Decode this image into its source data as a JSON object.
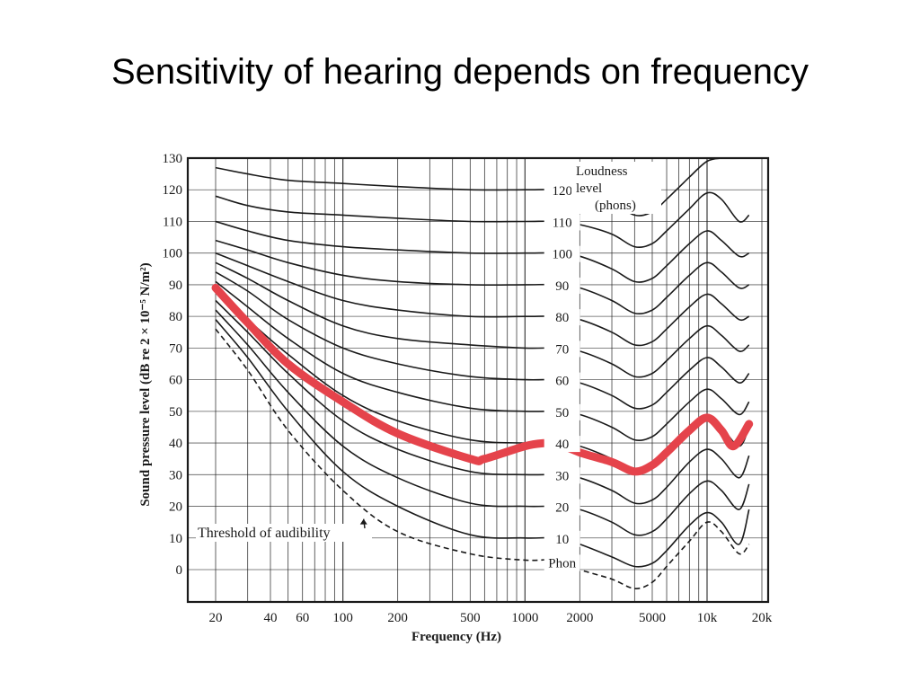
{
  "slide": {
    "title": "Sensitivity of hearing depends on frequency"
  },
  "colors": {
    "ink": "#1a1a1a",
    "highlight": "#e5434b",
    "background": "#ffffff"
  },
  "chart_data": {
    "type": "line",
    "title": "",
    "xlabel": "Frequency (Hz)",
    "ylabel": "Sound pressure level (dB re 2 × 10⁻⁵ N/m²)",
    "x_scale": "log",
    "xlim": [
      20,
      20000
    ],
    "ylim": [
      -10,
      130
    ],
    "grid": true,
    "x_ticks": [
      {
        "value": 20,
        "label": "20"
      },
      {
        "value": 40,
        "label": "40"
      },
      {
        "value": 60,
        "label": "60"
      },
      {
        "value": 100,
        "label": "100"
      },
      {
        "value": 200,
        "label": "200"
      },
      {
        "value": 500,
        "label": "500"
      },
      {
        "value": 1000,
        "label": "1000"
      },
      {
        "value": 2000,
        "label": "2000"
      },
      {
        "value": 5000,
        "label": "5000"
      },
      {
        "value": 10000,
        "label": "10k"
      },
      {
        "value": 20000,
        "label": "20k"
      }
    ],
    "y_ticks": [
      0,
      10,
      20,
      30,
      40,
      50,
      60,
      70,
      80,
      90,
      100,
      110,
      120,
      130
    ],
    "loudness_legend": {
      "title_line1": "Loudness",
      "title_line2": "level",
      "unit": "(phons)"
    },
    "series": [
      {
        "name": "Phon",
        "label": "Phon",
        "style": "dashed",
        "x": [
          20,
          30,
          50,
          100,
          200,
          500,
          1000,
          1500,
          2000,
          3000,
          4000,
          5000,
          6000,
          8000,
          10000,
          12000,
          15000,
          17000
        ],
        "y": [
          76,
          63,
          44,
          25,
          12,
          5,
          3,
          3,
          0,
          -3,
          -6,
          -4,
          1,
          9,
          15,
          12,
          5,
          8
        ]
      },
      {
        "name": "10",
        "label": "10",
        "x": [
          20,
          30,
          50,
          100,
          200,
          500,
          1000,
          1500,
          2000,
          3000,
          4000,
          5000,
          6000,
          8000,
          10000,
          12000,
          15000,
          17000
        ],
        "y": [
          79,
          67,
          50,
          31,
          20,
          11,
          10,
          10,
          8,
          4,
          1,
          2,
          6,
          14,
          18,
          15,
          8,
          19
        ]
      },
      {
        "name": "20",
        "label": "20",
        "x": [
          20,
          30,
          50,
          100,
          200,
          500,
          1000,
          1500,
          2000,
          3000,
          4000,
          5000,
          6000,
          8000,
          10000,
          12000,
          15000,
          17000
        ],
        "y": [
          82,
          71,
          56,
          39,
          29,
          21,
          20,
          20,
          19,
          15,
          11,
          12,
          16,
          24,
          28,
          25,
          19,
          27
        ]
      },
      {
        "name": "30",
        "label": "30",
        "x": [
          20,
          30,
          50,
          100,
          200,
          500,
          1000,
          1500,
          2000,
          3000,
          4000,
          5000,
          6000,
          8000,
          10000,
          12000,
          15000,
          17000
        ],
        "y": [
          85,
          75,
          62,
          47,
          38,
          31,
          30,
          30,
          29,
          25,
          21,
          22,
          26,
          34,
          38,
          35,
          29,
          36
        ]
      },
      {
        "name": "40",
        "label": "40",
        "x": [
          20,
          30,
          50,
          100,
          200,
          500,
          1000,
          1500,
          2000,
          3000,
          4000,
          5000,
          6000,
          8000,
          10000,
          12000,
          15000,
          17000
        ],
        "y": [
          88,
          79,
          68,
          55,
          47,
          41,
          40,
          40,
          39,
          35,
          31,
          32,
          36,
          44,
          48,
          45,
          39,
          45
        ]
      },
      {
        "name": "50",
        "label": "50",
        "x": [
          20,
          30,
          50,
          100,
          200,
          500,
          1000,
          1500,
          2000,
          3000,
          4000,
          5000,
          6000,
          8000,
          10000,
          12000,
          15000,
          17000
        ],
        "y": [
          91,
          83,
          73,
          62,
          56,
          51,
          50,
          50,
          49,
          45,
          41,
          42,
          46,
          53,
          57,
          54,
          49,
          53
        ]
      },
      {
        "name": "60",
        "label": "60",
        "x": [
          20,
          30,
          50,
          100,
          200,
          500,
          1000,
          1500,
          2000,
          3000,
          4000,
          5000,
          6000,
          8000,
          10000,
          12000,
          15000,
          17000
        ],
        "y": [
          94,
          88,
          79,
          70,
          65,
          61,
          60,
          60,
          59,
          55,
          51,
          52,
          56,
          63,
          67,
          64,
          59,
          62
        ]
      },
      {
        "name": "70",
        "label": "70",
        "x": [
          20,
          30,
          50,
          100,
          200,
          500,
          1000,
          1500,
          2000,
          3000,
          4000,
          5000,
          6000,
          8000,
          10000,
          12000,
          15000,
          17000
        ],
        "y": [
          97,
          92,
          85,
          77,
          73,
          71,
          70,
          70,
          69,
          65,
          61,
          62,
          66,
          73,
          77,
          74,
          69,
          71
        ]
      },
      {
        "name": "80",
        "label": "80",
        "x": [
          20,
          30,
          50,
          100,
          200,
          500,
          1000,
          1500,
          2000,
          3000,
          4000,
          5000,
          6000,
          8000,
          10000,
          12000,
          15000,
          17000
        ],
        "y": [
          100,
          96,
          91,
          85,
          82,
          80,
          80,
          80,
          79,
          75,
          71,
          72,
          76,
          83,
          87,
          84,
          79,
          80
        ]
      },
      {
        "name": "90",
        "label": "90",
        "x": [
          20,
          30,
          50,
          100,
          200,
          500,
          1000,
          1500,
          2000,
          3000,
          4000,
          5000,
          6000,
          8000,
          10000,
          12000,
          15000,
          17000
        ],
        "y": [
          104,
          101,
          97,
          93,
          91,
          90,
          90,
          90,
          89,
          85,
          81,
          82,
          86,
          93,
          97,
          94,
          89,
          90
        ]
      },
      {
        "name": "100",
        "label": "100",
        "x": [
          20,
          30,
          50,
          100,
          200,
          500,
          1000,
          1500,
          2000,
          3000,
          4000,
          5000,
          6000,
          8000,
          10000,
          12000,
          15000,
          17000
        ],
        "y": [
          110,
          107,
          104,
          102,
          101,
          100,
          100,
          100,
          99,
          95,
          91,
          92,
          96,
          103,
          107,
          104,
          99,
          100
        ]
      },
      {
        "name": "110",
        "label": "110",
        "x": [
          20,
          30,
          50,
          100,
          200,
          500,
          1000,
          1500,
          2000,
          3000,
          4000,
          5000,
          6000,
          8000,
          10000,
          12000,
          15000,
          17000
        ],
        "y": [
          118,
          115,
          113,
          112,
          111,
          110,
          110,
          110,
          109,
          106,
          102,
          103,
          107,
          114,
          119,
          117,
          110,
          112
        ]
      },
      {
        "name": "120",
        "label": "120",
        "x": [
          20,
          30,
          50,
          100,
          200,
          500,
          1000,
          1500,
          2000,
          3000,
          4000,
          5000,
          6000,
          8000,
          10000,
          12000
        ],
        "y": [
          127,
          125,
          123,
          122,
          121,
          120,
          120,
          120,
          119,
          116,
          112,
          113,
          117,
          124,
          129,
          130
        ]
      }
    ],
    "annotations": [
      {
        "text": "Threshold of audibility",
        "x": 60,
        "y": 9,
        "arrow_to": {
          "x": 130,
          "y": 16
        }
      }
    ],
    "highlight_curve": {
      "name": "highlight",
      "x": [
        20,
        30,
        50,
        100,
        200,
        500,
        600,
        1000,
        1300,
        1500,
        2000,
        3000,
        4000,
        5000,
        6000,
        8000,
        10000,
        12000,
        14000,
        17000
      ],
      "y": [
        89,
        78,
        65,
        53,
        43,
        35,
        35,
        39,
        40,
        40,
        37,
        34,
        31,
        33,
        37,
        44,
        48,
        44,
        39,
        46
      ]
    }
  }
}
